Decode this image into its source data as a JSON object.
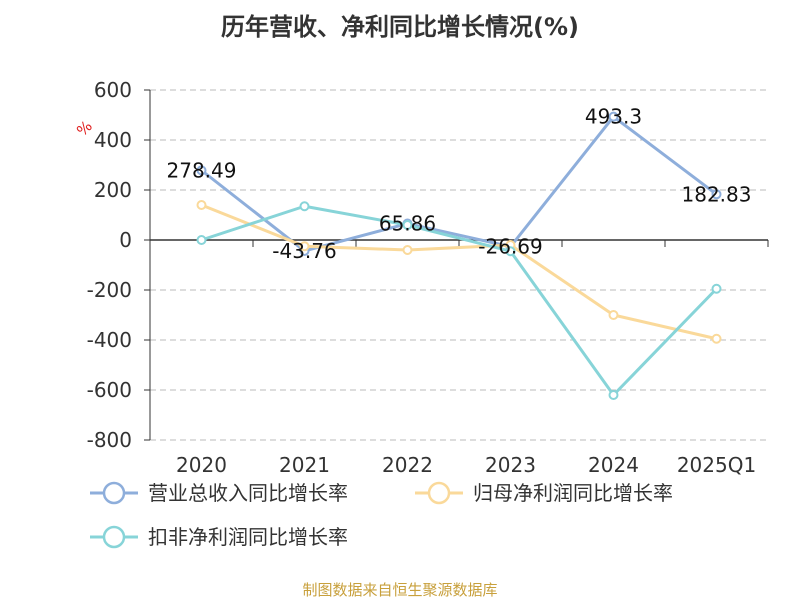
{
  "chart_data": {
    "type": "line",
    "title": "历年营收、净利同比增长情况(%)",
    "unit_label": "%",
    "categories": [
      "2020",
      "2021",
      "2022",
      "2023",
      "2024",
      "2025Q1"
    ],
    "y_ticks": [
      "600",
      "400",
      "200",
      "0",
      "-200",
      "-400",
      "-600",
      "-800"
    ],
    "ylim": [
      -800,
      600
    ],
    "grid": true,
    "legend_position": "bottom",
    "series": [
      {
        "name": "营业总收入同比增长率",
        "color": "#8eaedb",
        "values": [
          278.49,
          -43.76,
          65.86,
          -26.69,
          493.3,
          182.83
        ],
        "labels": [
          "278.49",
          "-43.76",
          "65.86",
          "-26.69",
          "493.3",
          "182.83"
        ]
      },
      {
        "name": "归母净利润同比增长率",
        "color": "#fad99a",
        "values": [
          140,
          -25,
          -40,
          -20,
          -300,
          -395
        ],
        "labels": [
          "",
          "",
          "",
          "",
          "",
          ""
        ]
      },
      {
        "name": "扣非净利润同比增长率",
        "color": "#87d4d8",
        "values": [
          0,
          135,
          60,
          -45,
          -620,
          -195
        ],
        "labels": [
          "",
          "",
          "",
          "",
          "",
          ""
        ]
      }
    ],
    "source": "制图数据来自恒生聚源数据库"
  }
}
